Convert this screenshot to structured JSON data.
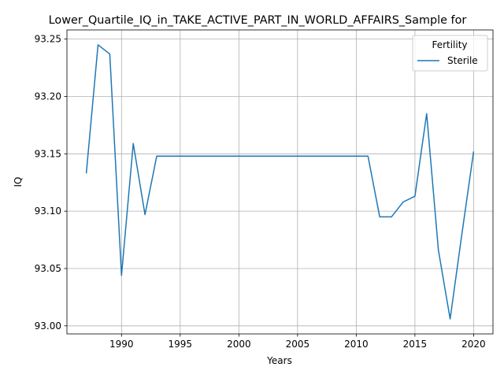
{
  "chart_data": {
    "type": "line",
    "title": "Lower_Quartile_IQ_in_TAKE_ACTIVE_PART_IN_WORLD_AFFAIRS_Sample for",
    "xlabel": "Years",
    "ylabel": "IQ",
    "xlim": [
      1985.35,
      2021.65
    ],
    "ylim": [
      92.993,
      93.258
    ],
    "grid": true,
    "xticks": [
      1990,
      1995,
      2000,
      2005,
      2010,
      2015,
      2020
    ],
    "yticks": [
      93.0,
      93.05,
      93.1,
      93.15,
      93.2,
      93.25
    ],
    "ytick_labels": [
      "93.00",
      "93.05",
      "93.10",
      "93.15",
      "93.20",
      "93.25"
    ],
    "legend": {
      "title": "Fertility",
      "placement": "top-right"
    },
    "series": [
      {
        "name": "Sterile",
        "color": "#1f77b4",
        "x": [
          1987,
          1988,
          1989,
          1990,
          1991,
          1992,
          1993,
          1994,
          1995,
          1996,
          1997,
          1998,
          1999,
          2000,
          2001,
          2002,
          2003,
          2004,
          2005,
          2006,
          2007,
          2008,
          2009,
          2010,
          2011,
          2012,
          2013,
          2014,
          2015,
          2016,
          2017,
          2018,
          2019,
          2020
        ],
        "y": [
          93.133,
          93.245,
          93.237,
          93.044,
          93.159,
          93.097,
          93.148,
          93.148,
          93.148,
          93.148,
          93.148,
          93.148,
          93.148,
          93.148,
          93.148,
          93.148,
          93.148,
          93.148,
          93.148,
          93.148,
          93.148,
          93.148,
          93.148,
          93.148,
          93.148,
          93.095,
          93.095,
          93.108,
          93.113,
          93.185,
          93.066,
          93.006,
          93.08,
          93.152
        ]
      }
    ]
  }
}
